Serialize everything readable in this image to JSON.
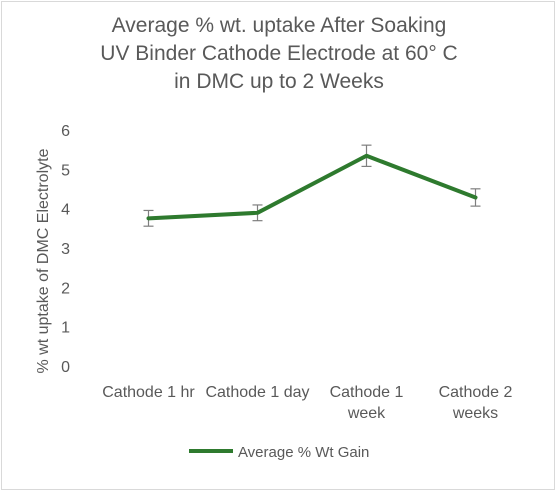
{
  "chart_data": {
    "type": "line",
    "title_lines": [
      "Average % wt. uptake After Soaking",
      "UV Binder Cathode Electrode at 60° C",
      "in DMC up to 2 Weeks"
    ],
    "xlabel": "",
    "ylabel": "% wt uptake of DMC Electrolyte",
    "ylim": [
      0,
      6
    ],
    "yticks": [
      "0",
      "1",
      "2",
      "3",
      "4",
      "5",
      "6"
    ],
    "grid": false,
    "legend_position": "bottom",
    "categories": [
      [
        "Cathode 1 hr"
      ],
      [
        "Cathode 1 day"
      ],
      [
        "Cathode 1",
        "week"
      ],
      [
        "Cathode 2",
        "weeks"
      ]
    ],
    "series": [
      {
        "name": "Average % Wt Gain",
        "color": "#2e7a2e",
        "values": [
          3.78,
          3.92,
          5.37,
          4.31
        ],
        "error": [
          0.2,
          0.2,
          0.27,
          0.22
        ]
      }
    ]
  }
}
